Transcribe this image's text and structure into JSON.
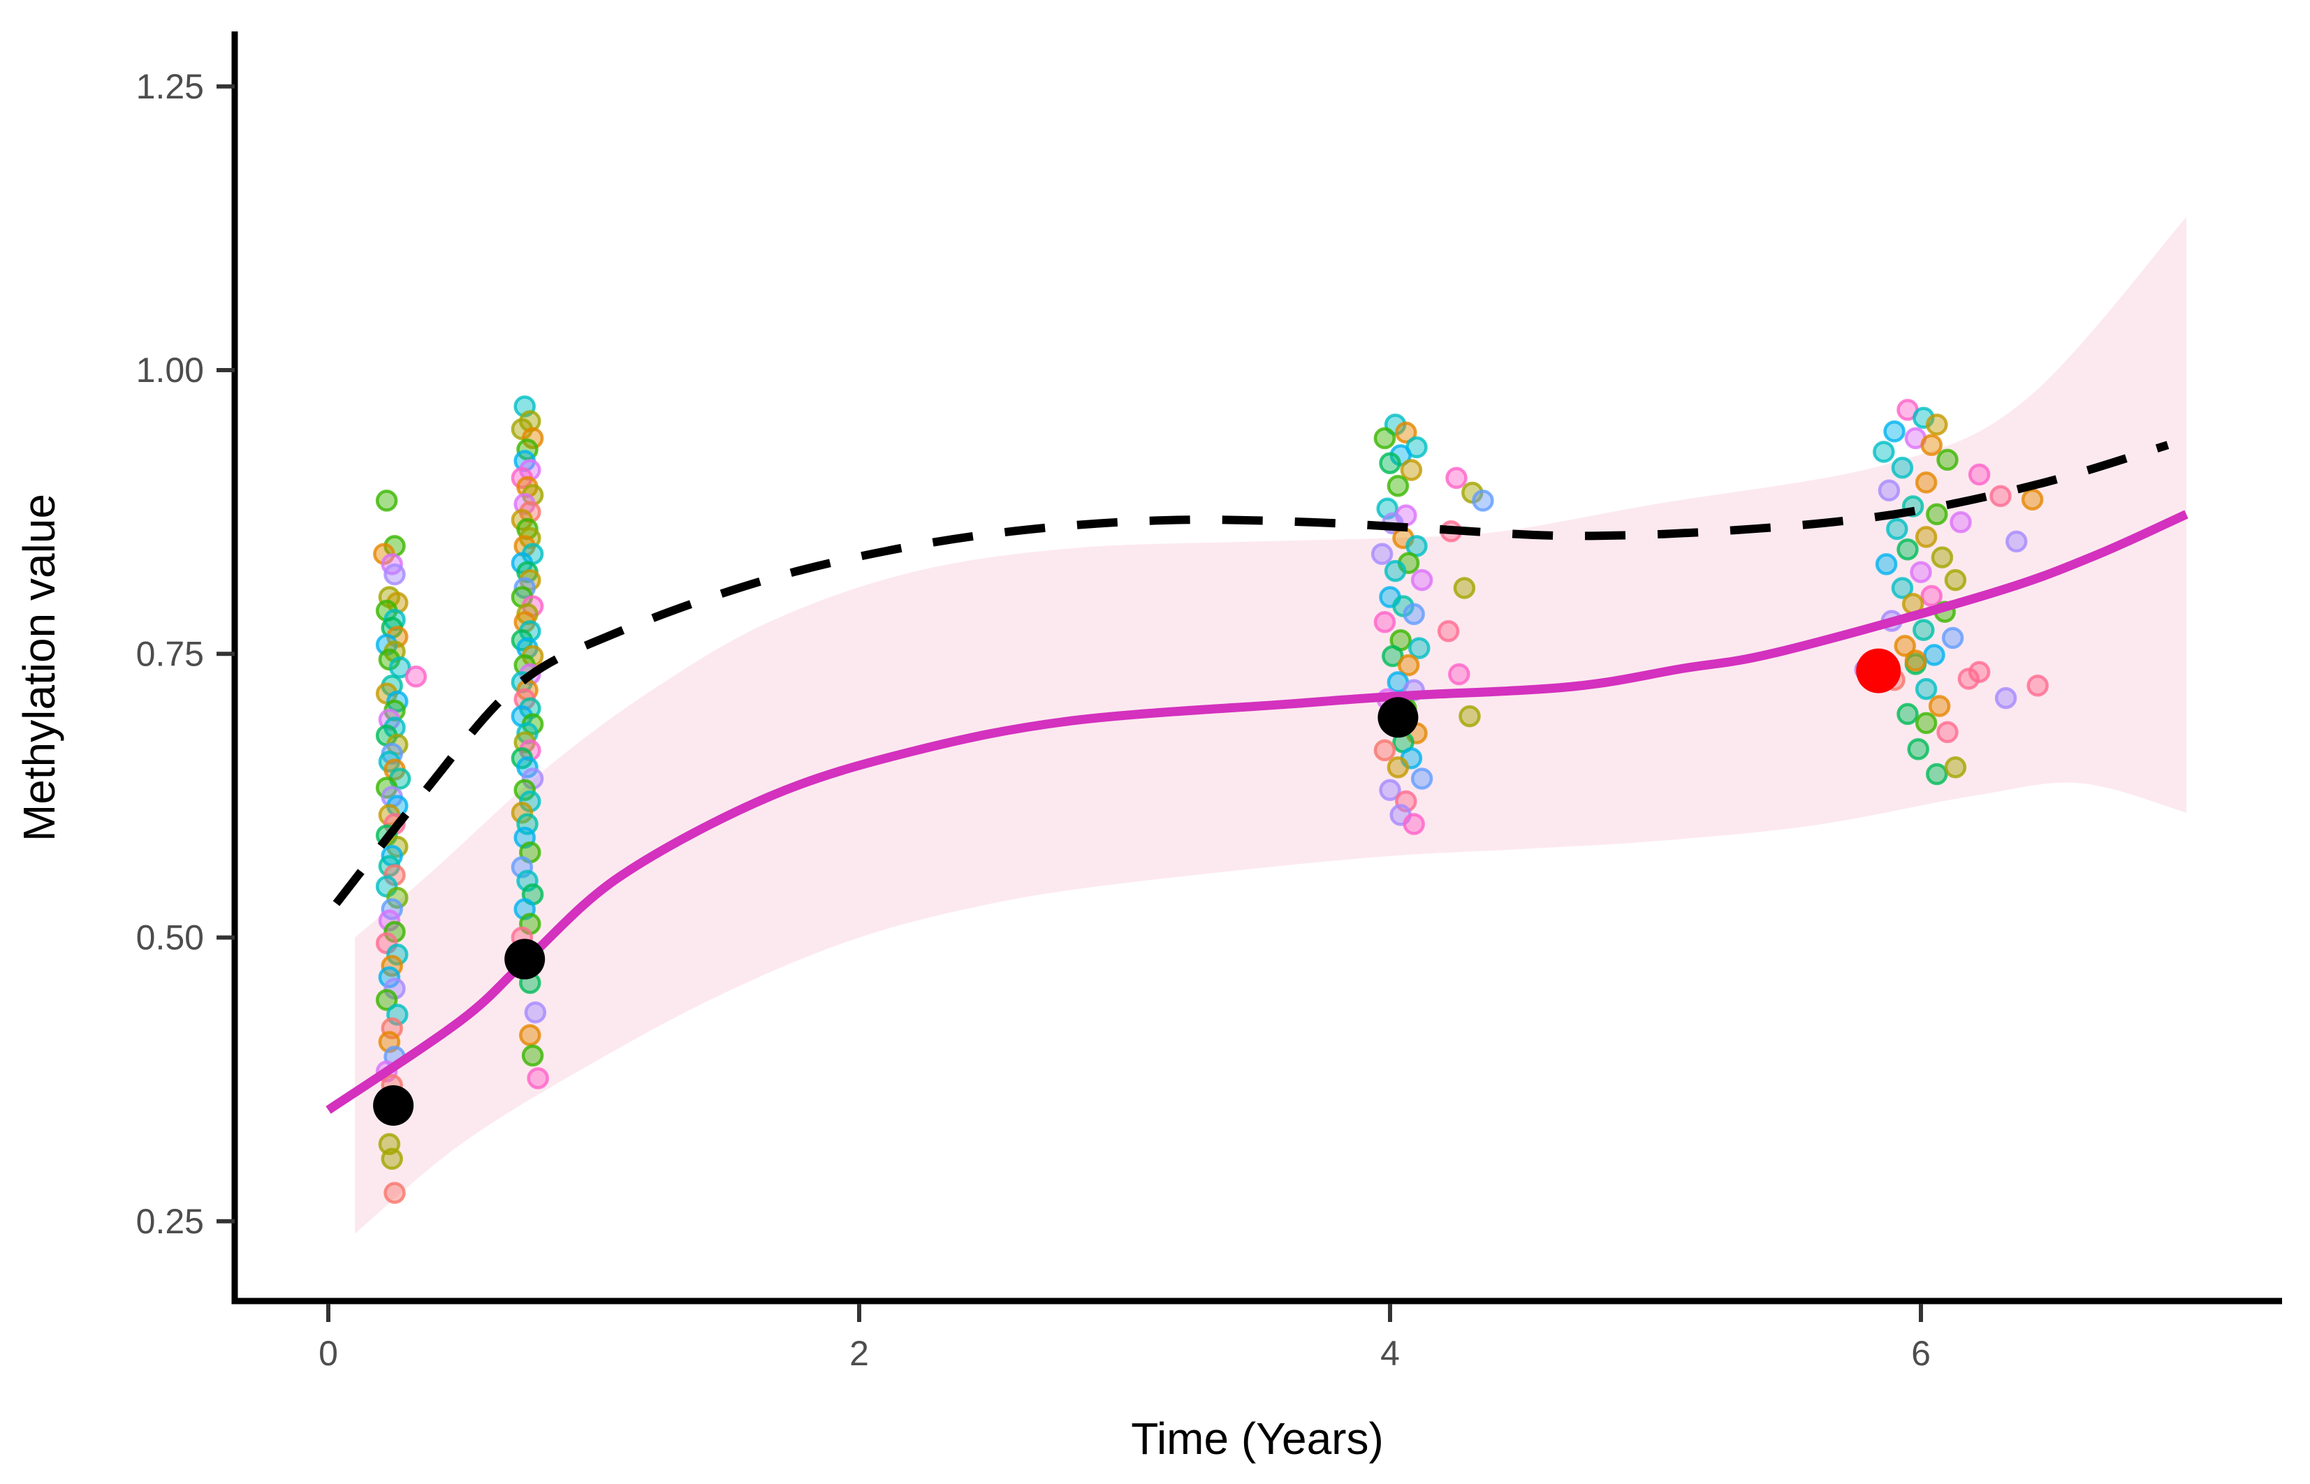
{
  "chart_data": {
    "type": "scatter",
    "title": "",
    "xlabel": "Time (Years)",
    "ylabel": "Methylation value",
    "x_ticks": [
      0,
      2,
      4,
      6
    ],
    "y_ticks": [
      0.25,
      0.5,
      0.75,
      1.0,
      1.25
    ],
    "y_tick_labels": [
      "0.25",
      "0.50",
      "0.75",
      "1.00",
      "1.25"
    ],
    "x_tick_labels": [
      "0",
      "2",
      "4",
      "6"
    ],
    "xlim": [
      -0.35,
      7.36
    ],
    "ylim": [
      0.18,
      1.3
    ],
    "grid": "off",
    "legend": "none",
    "colors": {
      "dashed_smooth": "#000000",
      "solid_smooth": "#D331BE",
      "ribbon_fill": "#FCE9EF",
      "mean_point": "#000000",
      "highlight_point": "#FF0000",
      "axis_line": "#000000",
      "tick_mark": "#333333",
      "tick_label": "#4d4d4d"
    },
    "palette": [
      "#F8766D",
      "#E58700",
      "#C49A00",
      "#A3A500",
      "#6BB100",
      "#39B600",
      "#00BC59",
      "#00C1A9",
      "#00BFC4",
      "#00B3F0",
      "#619CFF",
      "#A58AFF",
      "#DC71FA",
      "#FF61C9",
      "#FF6C91"
    ],
    "smooth_dashed": [
      [
        0.03,
        0.53
      ],
      [
        0.35,
        0.625
      ],
      [
        0.71,
        0.722
      ],
      [
        1.1,
        0.77
      ],
      [
        1.66,
        0.816
      ],
      [
        2.2,
        0.845
      ],
      [
        2.7,
        0.861
      ],
      [
        3.2,
        0.868
      ],
      [
        3.7,
        0.866
      ],
      [
        4.1,
        0.861
      ],
      [
        4.68,
        0.854
      ],
      [
        5.3,
        0.859
      ],
      [
        5.9,
        0.873
      ],
      [
        6.45,
        0.9
      ],
      [
        6.93,
        0.934
      ]
    ],
    "smooth_solid": [
      [
        0.0,
        0.348
      ],
      [
        0.5,
        0.427
      ],
      [
        0.75,
        0.481
      ],
      [
        1.1,
        0.554
      ],
      [
        1.66,
        0.624
      ],
      [
        2.2,
        0.664
      ],
      [
        2.8,
        0.691
      ],
      [
        3.63,
        0.706
      ],
      [
        4.05,
        0.713
      ],
      [
        4.68,
        0.721
      ],
      [
        5.1,
        0.737
      ],
      [
        5.47,
        0.752
      ],
      [
        6.26,
        0.803
      ],
      [
        6.65,
        0.836
      ],
      [
        7.0,
        0.873
      ]
    ],
    "ribbon_upper": [
      [
        0.1,
        0.5
      ],
      [
        0.39,
        0.558
      ],
      [
        0.8,
        0.645
      ],
      [
        1.2,
        0.715
      ],
      [
        1.66,
        0.778
      ],
      [
        2.2,
        0.822
      ],
      [
        2.8,
        0.843
      ],
      [
        3.5,
        0.849
      ],
      [
        4.0,
        0.852
      ],
      [
        4.42,
        0.858
      ],
      [
        5.0,
        0.882
      ],
      [
        5.87,
        0.917
      ],
      [
        6.4,
        0.975
      ],
      [
        7.0,
        1.135
      ]
    ],
    "ribbon_lower": [
      [
        0.1,
        0.239
      ],
      [
        0.5,
        0.318
      ],
      [
        1.0,
        0.39
      ],
      [
        1.5,
        0.452
      ],
      [
        2.0,
        0.5
      ],
      [
        2.5,
        0.53
      ],
      [
        3.0,
        0.548
      ],
      [
        3.9,
        0.57
      ],
      [
        4.5,
        0.578
      ],
      [
        5.0,
        0.585
      ],
      [
        5.6,
        0.599
      ],
      [
        6.2,
        0.625
      ],
      [
        6.6,
        0.636
      ],
      [
        7.0,
        0.61
      ]
    ],
    "mean_points": [
      [
        0.245,
        0.352
      ],
      [
        0.74,
        0.481
      ],
      [
        4.03,
        0.694
      ]
    ],
    "highlight_point": [
      5.84,
      0.735
    ],
    "jitter_points": [
      [
        0.22,
        0.885,
        5
      ],
      [
        0.25,
        0.845,
        5
      ],
      [
        0.21,
        0.838,
        1
      ],
      [
        0.24,
        0.829,
        12
      ],
      [
        0.25,
        0.82,
        11
      ],
      [
        0.23,
        0.8,
        3
      ],
      [
        0.26,
        0.795,
        2
      ],
      [
        0.22,
        0.788,
        5
      ],
      [
        0.25,
        0.78,
        8
      ],
      [
        0.24,
        0.773,
        6
      ],
      [
        0.26,
        0.765,
        1
      ],
      [
        0.22,
        0.758,
        9
      ],
      [
        0.25,
        0.752,
        3
      ],
      [
        0.23,
        0.745,
        5
      ],
      [
        0.27,
        0.738,
        8
      ],
      [
        0.33,
        0.73,
        13
      ],
      [
        0.24,
        0.722,
        7
      ],
      [
        0.22,
        0.715,
        2
      ],
      [
        0.26,
        0.708,
        9
      ],
      [
        0.25,
        0.7,
        5
      ],
      [
        0.23,
        0.692,
        12
      ],
      [
        0.25,
        0.685,
        8
      ],
      [
        0.22,
        0.678,
        6
      ],
      [
        0.26,
        0.67,
        3
      ],
      [
        0.24,
        0.662,
        10
      ],
      [
        0.23,
        0.655,
        8
      ],
      [
        0.25,
        0.648,
        1
      ],
      [
        0.27,
        0.64,
        7
      ],
      [
        0.22,
        0.632,
        5
      ],
      [
        0.24,
        0.624,
        11
      ],
      [
        0.26,
        0.616,
        9
      ],
      [
        0.23,
        0.608,
        2
      ],
      [
        0.25,
        0.6,
        14
      ],
      [
        0.22,
        0.59,
        6
      ],
      [
        0.26,
        0.58,
        3
      ],
      [
        0.24,
        0.572,
        9
      ],
      [
        0.23,
        0.563,
        7
      ],
      [
        0.25,
        0.555,
        0
      ],
      [
        0.22,
        0.545,
        8
      ],
      [
        0.26,
        0.535,
        4
      ],
      [
        0.24,
        0.525,
        10
      ],
      [
        0.23,
        0.515,
        12
      ],
      [
        0.25,
        0.505,
        5
      ],
      [
        0.22,
        0.495,
        14
      ],
      [
        0.26,
        0.485,
        8
      ],
      [
        0.24,
        0.475,
        1
      ],
      [
        0.23,
        0.465,
        9
      ],
      [
        0.25,
        0.455,
        11
      ],
      [
        0.22,
        0.445,
        5
      ],
      [
        0.26,
        0.432,
        8
      ],
      [
        0.24,
        0.42,
        0
      ],
      [
        0.23,
        0.408,
        1
      ],
      [
        0.25,
        0.395,
        10
      ],
      [
        0.22,
        0.382,
        12
      ],
      [
        0.24,
        0.37,
        0
      ],
      [
        0.26,
        0.358,
        5
      ],
      [
        0.25,
        0.345,
        12
      ],
      [
        0.23,
        0.318,
        3
      ],
      [
        0.24,
        0.305,
        3
      ],
      [
        0.25,
        0.275,
        0
      ],
      [
        0.74,
        0.968,
        8
      ],
      [
        0.76,
        0.955,
        3
      ],
      [
        0.73,
        0.948,
        3
      ],
      [
        0.77,
        0.94,
        1
      ],
      [
        0.75,
        0.93,
        5
      ],
      [
        0.74,
        0.92,
        9
      ],
      [
        0.76,
        0.912,
        12
      ],
      [
        0.73,
        0.905,
        13
      ],
      [
        0.75,
        0.897,
        1
      ],
      [
        0.77,
        0.89,
        3
      ],
      [
        0.74,
        0.882,
        12
      ],
      [
        0.76,
        0.875,
        0
      ],
      [
        0.73,
        0.868,
        2
      ],
      [
        0.75,
        0.86,
        5
      ],
      [
        0.76,
        0.852,
        3
      ],
      [
        0.74,
        0.845,
        1
      ],
      [
        0.77,
        0.838,
        8
      ],
      [
        0.73,
        0.83,
        9
      ],
      [
        0.75,
        0.822,
        6
      ],
      [
        0.76,
        0.815,
        2
      ],
      [
        0.74,
        0.808,
        10
      ],
      [
        0.73,
        0.8,
        5
      ],
      [
        0.77,
        0.792,
        13
      ],
      [
        0.75,
        0.785,
        3
      ],
      [
        0.74,
        0.778,
        1
      ],
      [
        0.76,
        0.77,
        8
      ],
      [
        0.73,
        0.762,
        6
      ],
      [
        0.75,
        0.755,
        9
      ],
      [
        0.77,
        0.748,
        2
      ],
      [
        0.74,
        0.74,
        5
      ],
      [
        0.76,
        0.732,
        12
      ],
      [
        0.73,
        0.725,
        8
      ],
      [
        0.75,
        0.718,
        1
      ],
      [
        0.74,
        0.71,
        14
      ],
      [
        0.76,
        0.702,
        7
      ],
      [
        0.73,
        0.695,
        9
      ],
      [
        0.77,
        0.688,
        5
      ],
      [
        0.75,
        0.68,
        8
      ],
      [
        0.74,
        0.672,
        3
      ],
      [
        0.76,
        0.665,
        13
      ],
      [
        0.73,
        0.658,
        6
      ],
      [
        0.75,
        0.65,
        9
      ],
      [
        0.77,
        0.64,
        11
      ],
      [
        0.74,
        0.63,
        5
      ],
      [
        0.76,
        0.62,
        8
      ],
      [
        0.73,
        0.61,
        2
      ],
      [
        0.75,
        0.6,
        7
      ],
      [
        0.74,
        0.588,
        9
      ],
      [
        0.76,
        0.575,
        5
      ],
      [
        0.73,
        0.562,
        10
      ],
      [
        0.75,
        0.55,
        8
      ],
      [
        0.77,
        0.538,
        6
      ],
      [
        0.74,
        0.525,
        9
      ],
      [
        0.76,
        0.512,
        5
      ],
      [
        0.73,
        0.5,
        14
      ],
      [
        0.75,
        0.488,
        10
      ],
      [
        0.74,
        0.475,
        0
      ],
      [
        0.76,
        0.46,
        6
      ],
      [
        0.78,
        0.434,
        11
      ],
      [
        0.76,
        0.414,
        1
      ],
      [
        0.77,
        0.396,
        5
      ],
      [
        0.79,
        0.376,
        13
      ],
      [
        4.02,
        0.952,
        8
      ],
      [
        4.06,
        0.945,
        1
      ],
      [
        3.98,
        0.94,
        5
      ],
      [
        4.1,
        0.932,
        8
      ],
      [
        4.04,
        0.925,
        9
      ],
      [
        4.0,
        0.918,
        6
      ],
      [
        4.08,
        0.912,
        2
      ],
      [
        4.25,
        0.905,
        13
      ],
      [
        4.03,
        0.898,
        5
      ],
      [
        4.31,
        0.892,
        3
      ],
      [
        4.35,
        0.885,
        10
      ],
      [
        3.99,
        0.878,
        8
      ],
      [
        4.06,
        0.872,
        12
      ],
      [
        4.01,
        0.865,
        11
      ],
      [
        4.23,
        0.858,
        14
      ],
      [
        4.05,
        0.852,
        1
      ],
      [
        4.1,
        0.845,
        8
      ],
      [
        3.97,
        0.838,
        11
      ],
      [
        4.07,
        0.83,
        5
      ],
      [
        4.02,
        0.823,
        8
      ],
      [
        4.12,
        0.815,
        12
      ],
      [
        4.28,
        0.808,
        3
      ],
      [
        4.0,
        0.8,
        9
      ],
      [
        4.05,
        0.792,
        7
      ],
      [
        4.09,
        0.785,
        10
      ],
      [
        3.98,
        0.778,
        13
      ],
      [
        4.22,
        0.77,
        14
      ],
      [
        4.04,
        0.762,
        5
      ],
      [
        4.11,
        0.755,
        8
      ],
      [
        4.01,
        0.748,
        6
      ],
      [
        4.07,
        0.74,
        1
      ],
      [
        4.26,
        0.732,
        13
      ],
      [
        4.03,
        0.725,
        9
      ],
      [
        4.09,
        0.718,
        11
      ],
      [
        3.99,
        0.71,
        12
      ],
      [
        4.06,
        0.702,
        5
      ],
      [
        4.3,
        0.695,
        3
      ],
      [
        4.02,
        0.688,
        8
      ],
      [
        4.1,
        0.68,
        1
      ],
      [
        4.05,
        0.672,
        6
      ],
      [
        3.98,
        0.665,
        0
      ],
      [
        4.08,
        0.658,
        9
      ],
      [
        4.03,
        0.65,
        2
      ],
      [
        4.12,
        0.64,
        10
      ],
      [
        4.0,
        0.63,
        11
      ],
      [
        4.06,
        0.62,
        14
      ],
      [
        4.04,
        0.608,
        11
      ],
      [
        4.09,
        0.6,
        13
      ],
      [
        5.95,
        0.965,
        13
      ],
      [
        6.01,
        0.958,
        8
      ],
      [
        6.06,
        0.952,
        2
      ],
      [
        5.9,
        0.946,
        9
      ],
      [
        5.98,
        0.94,
        12
      ],
      [
        6.04,
        0.934,
        1
      ],
      [
        5.86,
        0.928,
        8
      ],
      [
        6.1,
        0.921,
        5
      ],
      [
        5.93,
        0.914,
        8
      ],
      [
        6.22,
        0.908,
        13
      ],
      [
        6.02,
        0.901,
        1
      ],
      [
        5.88,
        0.894,
        11
      ],
      [
        6.3,
        0.889,
        14
      ],
      [
        6.42,
        0.886,
        1
      ],
      [
        5.97,
        0.88,
        7
      ],
      [
        6.06,
        0.873,
        5
      ],
      [
        6.15,
        0.866,
        12
      ],
      [
        5.91,
        0.86,
        8
      ],
      [
        6.02,
        0.853,
        2
      ],
      [
        6.36,
        0.849,
        11
      ],
      [
        5.95,
        0.842,
        6
      ],
      [
        6.08,
        0.835,
        3
      ],
      [
        5.87,
        0.829,
        9
      ],
      [
        6.0,
        0.822,
        12
      ],
      [
        6.13,
        0.815,
        3
      ],
      [
        5.93,
        0.808,
        8
      ],
      [
        6.04,
        0.801,
        13
      ],
      [
        5.97,
        0.794,
        2
      ],
      [
        6.09,
        0.787,
        5
      ],
      [
        5.89,
        0.779,
        11
      ],
      [
        6.01,
        0.771,
        7
      ],
      [
        6.12,
        0.764,
        10
      ],
      [
        5.94,
        0.757,
        1
      ],
      [
        6.05,
        0.749,
        9
      ],
      [
        5.98,
        0.741,
        6
      ],
      [
        6.22,
        0.734,
        14
      ],
      [
        5.9,
        0.727,
        0
      ],
      [
        6.02,
        0.719,
        8
      ],
      [
        6.32,
        0.711,
        11
      ],
      [
        6.07,
        0.704,
        1
      ],
      [
        5.79,
        0.736,
        11
      ],
      [
        5.98,
        0.744,
        1
      ],
      [
        6.18,
        0.728,
        14
      ],
      [
        6.44,
        0.722,
        14
      ],
      [
        5.95,
        0.697,
        6
      ],
      [
        6.02,
        0.689,
        5
      ],
      [
        6.1,
        0.681,
        14
      ],
      [
        5.99,
        0.666,
        6
      ],
      [
        6.06,
        0.644,
        6
      ],
      [
        6.13,
        0.65,
        3
      ]
    ]
  }
}
